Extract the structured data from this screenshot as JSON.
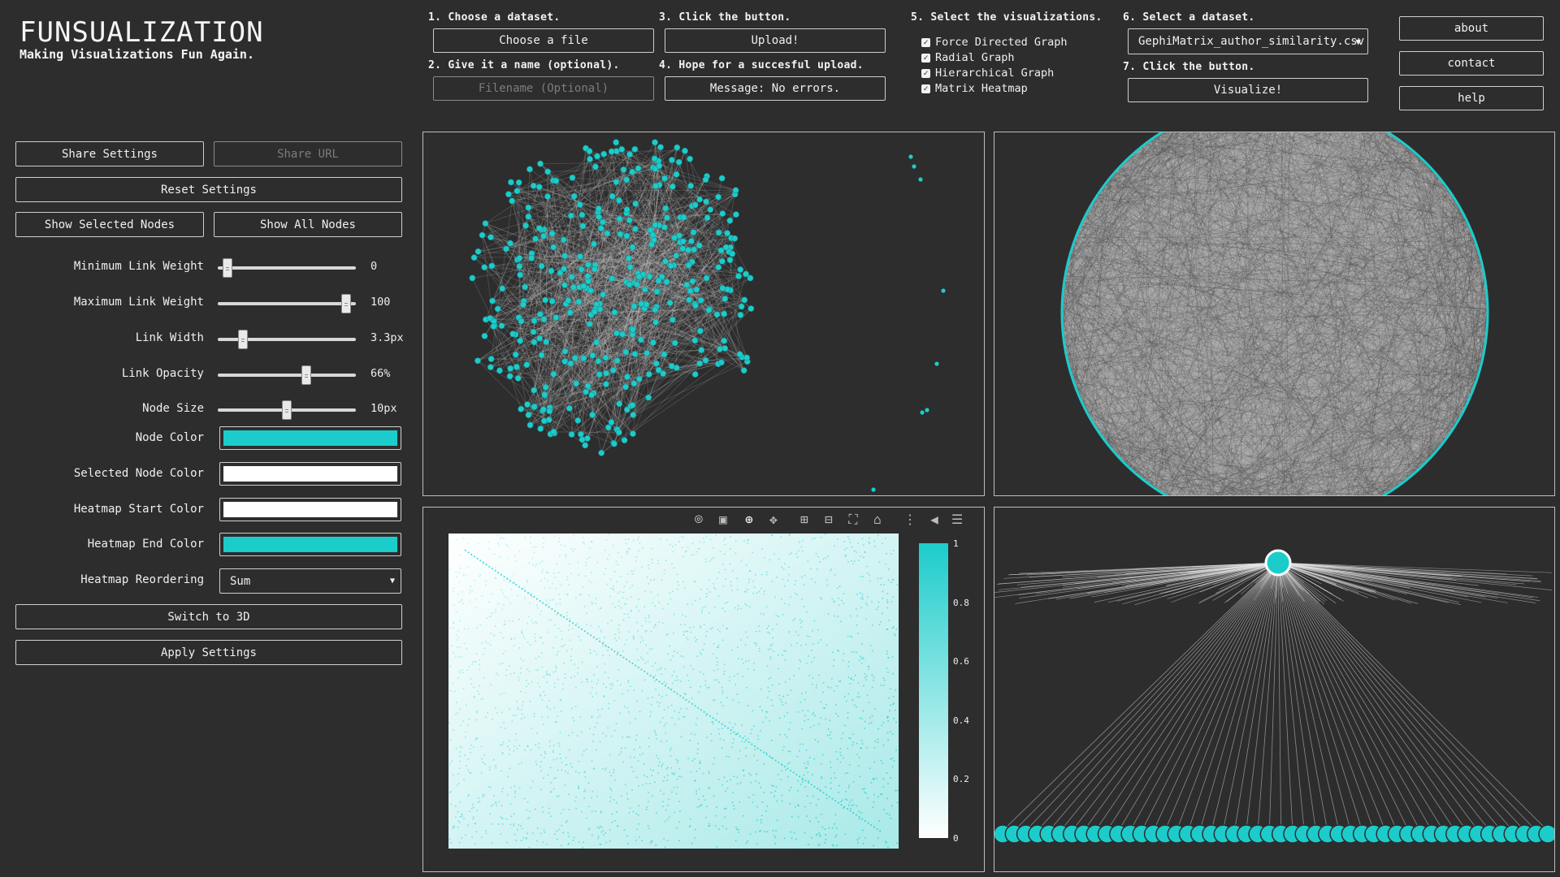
{
  "brand": {
    "title": "FUNSUALIZATION",
    "subtitle": "Making Visualizations Fun Again."
  },
  "steps": {
    "s1": "1. Choose a dataset.",
    "s2": "2. Give it a name (optional).",
    "s3": "3. Click the button.",
    "s4": "4. Hope for a succesful upload.",
    "s5": "5. Select the visualizations.",
    "s6": "6. Select a dataset.",
    "s7": "7. Click the button."
  },
  "upload": {
    "choose_file": "Choose a file",
    "filename_placeholder": "Filename (Optional)",
    "upload_button": "Upload!",
    "message": "Message: No errors."
  },
  "visualizations": [
    {
      "label": "Force Directed Graph",
      "checked": true
    },
    {
      "label": "Radial Graph",
      "checked": true
    },
    {
      "label": "Hierarchical Graph",
      "checked": true
    },
    {
      "label": "Matrix Heatmap",
      "checked": true
    }
  ],
  "dataset_select": {
    "selected": "GephiMatrix_author_similarity.csv"
  },
  "visualize_button": "Visualize!",
  "nav": {
    "about": "about",
    "contact": "contact",
    "help": "help"
  },
  "settings": {
    "share_settings": "Share Settings",
    "share_url": "Share URL",
    "reset_settings": "Reset Settings",
    "show_selected": "Show Selected Nodes",
    "show_all": "Show All Nodes",
    "sliders": [
      {
        "label": "Minimum Link Weight",
        "value": "0",
        "fraction": 0.07
      },
      {
        "label": "Maximum Link Weight",
        "value": "100",
        "fraction": 0.93
      },
      {
        "label": "Link Width",
        "value": "3.3px",
        "fraction": 0.18
      },
      {
        "label": "Link Opacity",
        "value": "66%",
        "fraction": 0.64
      },
      {
        "label": "Node Size",
        "value": "10px",
        "fraction": 0.5
      }
    ],
    "colors": [
      {
        "label": "Node Color",
        "color": "#1ccccb"
      },
      {
        "label": "Selected Node Color",
        "color": "#ffffff"
      },
      {
        "label": "Heatmap Start Color",
        "color": "#ffffff"
      },
      {
        "label": "Heatmap End Color",
        "color": "#1ccccb"
      }
    ],
    "reorder": {
      "label": "Heatmap Reordering",
      "selected": "Sum"
    },
    "switch_3d": "Switch to 3D",
    "apply": "Apply Settings"
  },
  "heatmap": {
    "colorbar_ticks": [
      "1",
      "0.8",
      "0.6",
      "0.4",
      "0.2",
      "0"
    ],
    "toolbar_icons": [
      "camera-icon",
      "save-icon",
      "zoom-icon",
      "pan-icon",
      "zoom-in-icon",
      "zoom-out-icon",
      "autoscale-icon",
      "home-icon",
      "spike-lines-icon",
      "hover-closest-icon",
      "hover-compare-icon"
    ]
  },
  "theme": {
    "accent": "#1ccccb",
    "background": "#2d2d2d"
  }
}
